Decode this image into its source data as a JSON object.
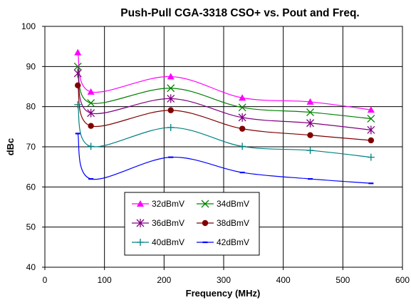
{
  "chart_data": {
    "type": "line",
    "title": "Push-Pull CGA-3318 CSO+ vs. Pout and Freq.",
    "xlabel": "Frequency (MHz)",
    "ylabel": "dBc",
    "xlim": [
      0,
      600
    ],
    "ylim": [
      40,
      100
    ],
    "xticks": [
      0,
      100,
      200,
      300,
      400,
      500,
      600
    ],
    "yticks": [
      40,
      50,
      60,
      70,
      80,
      90,
      100
    ],
    "grid": true,
    "legend_position": "bottom-left inside plot, two columns",
    "x": [
      55.25,
      77.25,
      211.25,
      331.25,
      445.25,
      547.25
    ],
    "series": [
      {
        "name": "32dBmV",
        "color": "#ff00ff",
        "marker": "triangle",
        "values": [
          93.5,
          83.7,
          87.5,
          82.2,
          81.2,
          79.2
        ]
      },
      {
        "name": "34dBmV",
        "color": "#008000",
        "marker": "x",
        "values": [
          90.0,
          80.9,
          84.6,
          79.8,
          78.6,
          77.0
        ]
      },
      {
        "name": "36dBmV",
        "color": "#800080",
        "marker": "star",
        "values": [
          88.3,
          78.4,
          82.0,
          77.3,
          75.9,
          74.2
        ]
      },
      {
        "name": "38dBmV",
        "color": "#800000",
        "marker": "circle",
        "values": [
          85.3,
          75.2,
          79.1,
          74.5,
          72.9,
          71.6
        ]
      },
      {
        "name": "40dBmV",
        "color": "#008080",
        "marker": "plus",
        "values": [
          80.5,
          70.1,
          74.8,
          70.1,
          69.1,
          67.4
        ]
      },
      {
        "name": "42dBmV",
        "color": "#0000ff",
        "marker": "dash",
        "values": [
          73.3,
          62.0,
          67.4,
          63.6,
          62.0,
          60.9
        ]
      }
    ]
  }
}
